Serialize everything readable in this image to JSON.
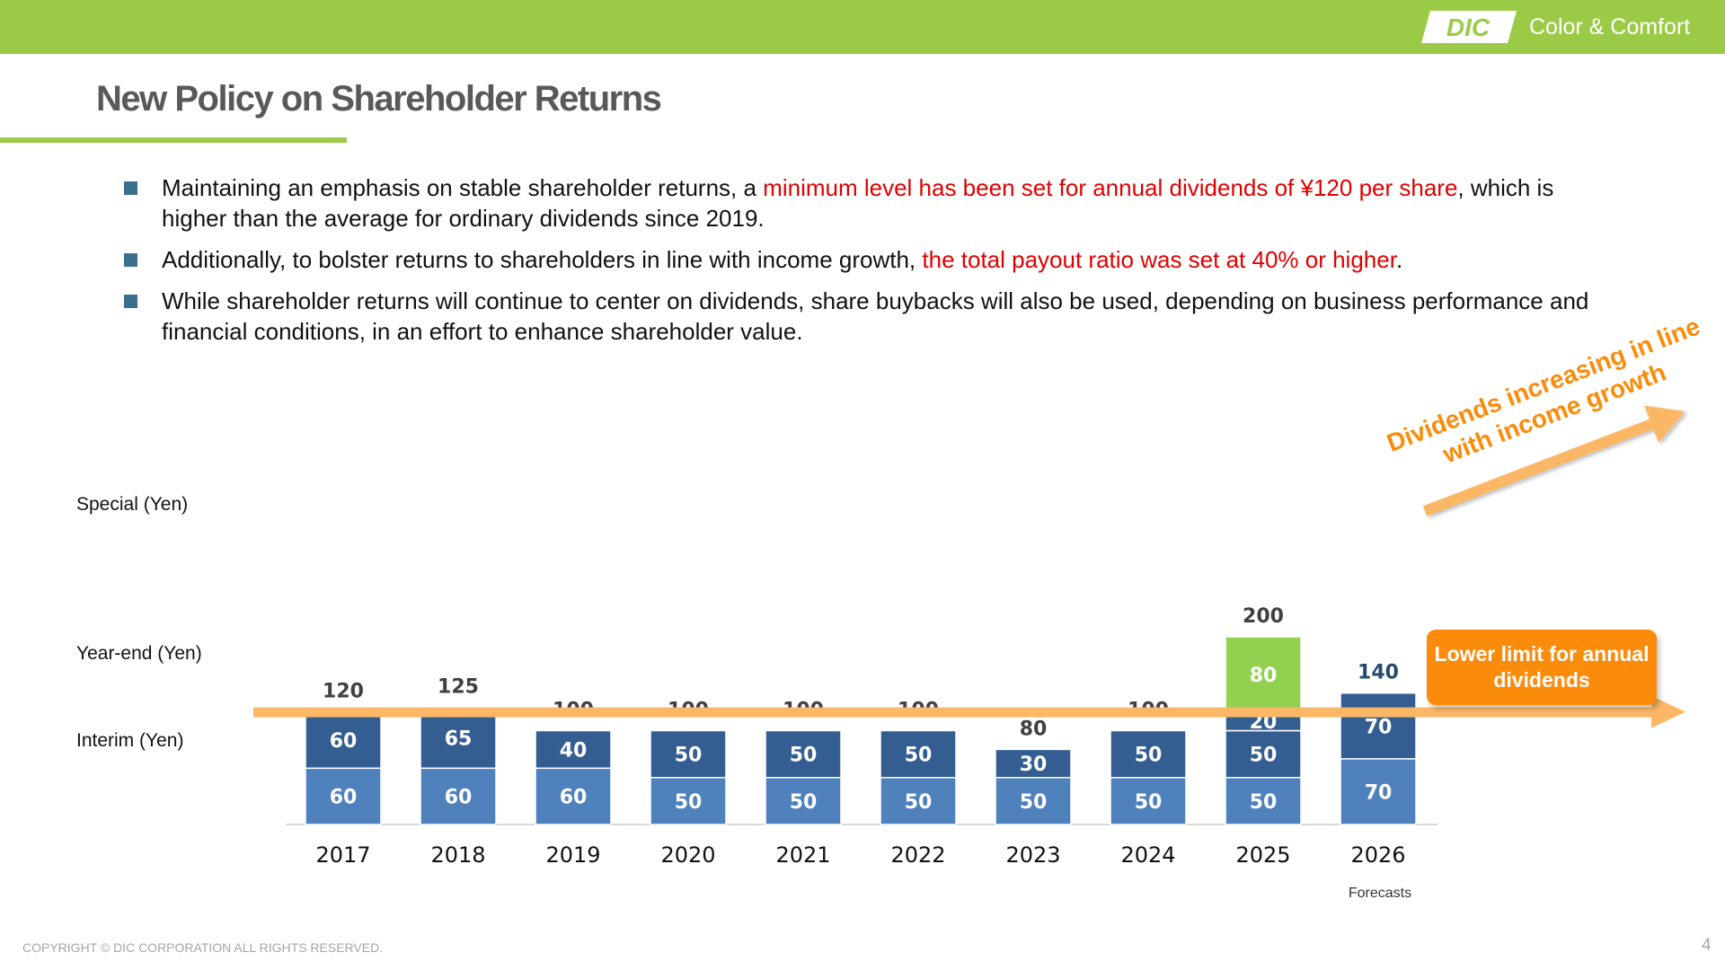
{
  "header": {
    "logo_text": "DIC",
    "tagline": "Color & Comfort",
    "title": "New Policy on Shareholder Returns"
  },
  "bullets": [
    {
      "text_before": "Maintaining an emphasis on stable shareholder returns, a ",
      "highlight": "minimum level has been set for annual dividends of ¥120 per share",
      "text_after": ", which is higher than the average for ordinary dividends since 2019."
    },
    {
      "text_before": "Additionally, to bolster returns to shareholders in line with income growth, ",
      "highlight": "the total payout ratio was set at 40% or higher",
      "text_after": "."
    },
    {
      "text_before": "While shareholder returns will continue to center on dividends, share buybacks will also be used, depending on business performance and financial conditions, in an effort to enhance shareholder value.",
      "highlight": "",
      "text_after": ""
    }
  ],
  "labels": {
    "special": "Special (Yen)",
    "year_end": "Year-end (Yen)",
    "interim": "Interim (Yen)",
    "callout": "Lower limit for annual dividends",
    "growth_line1": "Dividends increasing in line",
    "growth_line2": "with income growth"
  },
  "chart_data": {
    "type": "bar",
    "stacked": true,
    "categories": [
      "2017",
      "2018",
      "2019",
      "2020",
      "2021",
      "2022",
      "2023",
      "2024",
      "2025",
      "2026"
    ],
    "series": [
      {
        "name": "Interim (Yen)",
        "values": [
          60,
          60,
          60,
          50,
          50,
          50,
          50,
          50,
          50,
          70
        ],
        "color": "#4f81bd"
      },
      {
        "name": "Year-end (Yen)",
        "values": [
          60,
          65,
          40,
          50,
          50,
          50,
          30,
          50,
          50,
          70
        ],
        "color": "#345e91"
      },
      {
        "name": "Special (Yen)",
        "values": [
          0,
          0,
          0,
          0,
          0,
          0,
          0,
          0,
          100,
          0
        ],
        "colors": [
          "#345e91",
          "#92d050"
        ],
        "segment_labels": [
          "20",
          "80"
        ]
      }
    ],
    "totals": [
      120,
      125,
      100,
      100,
      100,
      100,
      80,
      100,
      200,
      140
    ],
    "total_label_colors": [
      "#404040",
      "#404040",
      "#404040",
      "#404040",
      "#404040",
      "#404040",
      "#404040",
      "#404040",
      "#404040",
      "#254a6e"
    ],
    "reference_line": {
      "value": 120,
      "label": "Lower limit for annual dividends",
      "color": "#fbb765"
    },
    "forecast_note": {
      "category": "2026",
      "text": "Forecasts"
    },
    "ylim": [
      0,
      200
    ],
    "grid": false,
    "legend": "left"
  },
  "footer": {
    "copyright": "COPYRIGHT © DIC CORPORATION ALL RIGHTS RESERVED.",
    "page_number": "4"
  }
}
